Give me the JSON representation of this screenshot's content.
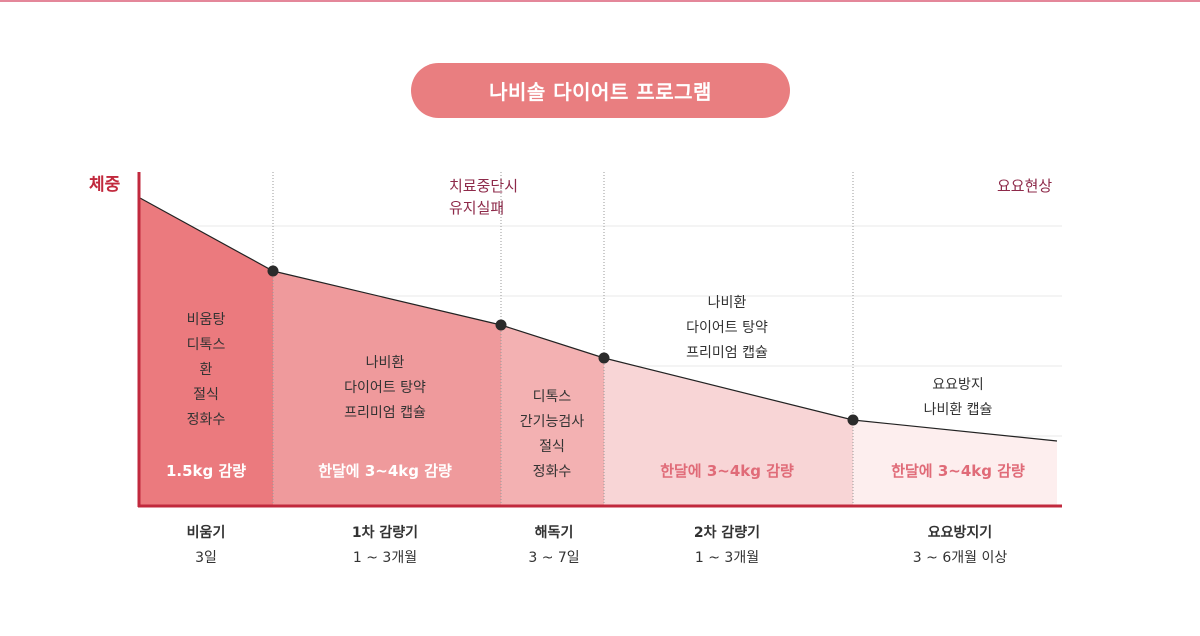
{
  "title": "나비솔 다이어트 프로그램",
  "y_axis_label": "체중",
  "annotations": [
    {
      "lines": [
        "치료중단시",
        "유지실패"
      ]
    },
    {
      "lines": [
        "요요현상"
      ]
    }
  ],
  "phases": [
    {
      "name": "비움기",
      "duration": "3일",
      "treatments": [
        "비움탕",
        "디톡스",
        "환",
        "절식",
        "정화수"
      ],
      "result": "1.5kg 감량",
      "color": "#eb7a7e"
    },
    {
      "name": "1차 감량기",
      "duration": "1 ~ 3개월",
      "treatments": [
        "나비환",
        "다이어트 탕약",
        "프리미엄 캡슐"
      ],
      "result": "한달에 3~4kg 감량",
      "color": "#ef9a9c"
    },
    {
      "name": "해독기",
      "duration": "3 ~ 7일",
      "treatments": [
        "디톡스",
        "간기능검사",
        "절식",
        "정화수"
      ],
      "result": "",
      "color": "#f3b1b2"
    },
    {
      "name": "2차 감량기",
      "duration": "1 ~ 3개월",
      "treatments": [
        "나비환",
        "다이어트 탕약",
        "프리미엄 캡슐"
      ],
      "result": "한달에 3~4kg 감량",
      "color": "#f8d5d6"
    },
    {
      "name": "요요방지기",
      "duration": "3 ~ 6개월 이상",
      "treatments": [
        "요요방지",
        "나비환 캡슐"
      ],
      "result": "한달에 3~4kg 감량",
      "color": "#fdeeee"
    }
  ],
  "colors": {
    "accent": "#e97e80",
    "axis": "#c1293d",
    "annotation": "#8e2a4a",
    "line": "#222222",
    "band_text_dark": "#e06b78"
  }
}
